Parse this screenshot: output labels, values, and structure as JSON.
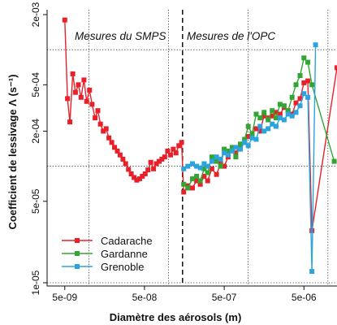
{
  "chart_data": {
    "type": "line",
    "xlabel": "Diamètre des aérosols (m)",
    "ylabel": "Coefficient de lessivage Λ (s⁻¹)",
    "x_scale": "log",
    "y_scale": "log",
    "xlim": [
      3e-09,
      1.3e-05
    ],
    "ylim": [
      1e-05,
      0.002
    ],
    "x_ticks": [
      5e-09,
      5e-08,
      5e-07,
      5e-06
    ],
    "x_tick_labels": [
      "5e-09",
      "5e-08",
      "5e-07",
      "5e-06"
    ],
    "y_ticks": [
      1e-05,
      5e-05,
      0.0002,
      0.0005,
      0.002
    ],
    "y_tick_labels": [
      "1e-05",
      "5e-05",
      "2e-04",
      "5e-04",
      "2e-03"
    ],
    "grid": "dotted",
    "vertical_lines": [
      1e-08,
      1e-07,
      1e-06,
      1e-05
    ],
    "horizontal_lines": [
      1e-05,
      0.0001,
      0.001
    ],
    "separator_x": 1.5e-07,
    "annotations": [
      "Mesures du SMPS",
      "Mesures de l'OPC"
    ],
    "legend_position": "bottom-left",
    "series": [
      {
        "name": "Cadarache",
        "color": "#e8202a",
        "x": [
          5e-09,
          5.4e-09,
          5.8e-09,
          6.3e-09,
          6.8e-09,
          7.4e-09,
          8e-09,
          8.7e-09,
          9.4e-09,
          1.02e-08,
          1.1e-08,
          1.2e-08,
          1.3e-08,
          1.4e-08,
          1.52e-08,
          1.65e-08,
          1.79e-08,
          1.94e-08,
          2.1e-08,
          2.28e-08,
          2.47e-08,
          2.68e-08,
          2.9e-08,
          3.15e-08,
          3.41e-08,
          3.7e-08,
          4e-08,
          4.34e-08,
          4.7e-08,
          5.1e-08,
          5.53e-08,
          6e-08,
          6.5e-08,
          7.05e-08,
          7.64e-08,
          8.28e-08,
          8.98e-08,
          9.74e-08,
          1.06e-07,
          1.15e-07,
          1.24e-07,
          1.35e-07,
          1.46e-07,
          1.55e-07,
          1.75e-07,
          2e-07,
          2.25e-07,
          2.5e-07,
          2.8e-07,
          3.1e-07,
          3.5e-07,
          4e-07,
          4.5e-07,
          5e-07,
          5.6e-07,
          6.3e-07,
          7e-07,
          8e-07,
          9e-07,
          1e-06,
          1.12e-06,
          1.26e-06,
          1.41e-06,
          1.58e-06,
          1.78e-06,
          2e-06,
          2.24e-06,
          2.51e-06,
          2.82e-06,
          3.16e-06,
          3.55e-06,
          3.98e-06,
          4.47e-06,
          5e-06,
          5.6e-06,
          6.3e-06,
          1.3e-05
        ],
        "y": [
          0.0018,
          0.00038,
          0.00024,
          0.00062,
          0.00043,
          0.0005,
          0.00039,
          0.00055,
          0.00036,
          0.00045,
          0.00034,
          0.00026,
          0.0003,
          0.00023,
          0.0002,
          0.00021,
          0.000175,
          0.00016,
          0.000145,
          0.000135,
          0.000125,
          0.000115,
          0.000105,
          9.4e-05,
          8.6e-05,
          8e-05,
          7.6e-05,
          7.8e-05,
          8.2e-05,
          8.6e-05,
          9.3e-05,
          0.000108,
          9.5e-05,
          0.000105,
          0.00011,
          0.000115,
          0.00012,
          0.000135,
          0.000125,
          0.00014,
          0.00013,
          0.00015,
          0.00016,
          6e-05,
          6.8e-05,
          6.5e-05,
          7.5e-05,
          7e-05,
          8.2e-05,
          7.5e-05,
          9.5e-05,
          8.5e-05,
          0.000105,
          0.0001,
          0.00012,
          0.00014,
          0.00013,
          0.00015,
          0.00016,
          0.00018,
          0.00019,
          0.00021,
          0.0002,
          0.00027,
          0.00026,
          0.00027,
          0.00029,
          0.00028,
          0.00032,
          0.0003,
          0.00028,
          0.00035,
          0.00038,
          0.00052,
          0.00054,
          2.8e-05,
          0.0007
        ]
      },
      {
        "name": "Gardanne",
        "color": "#33a532",
        "x": [
          1.55e-07,
          1.75e-07,
          2e-07,
          2.25e-07,
          2.5e-07,
          2.8e-07,
          3.1e-07,
          3.5e-07,
          4e-07,
          4.5e-07,
          5e-07,
          5.6e-07,
          6.3e-07,
          7e-07,
          8e-07,
          9e-07,
          1e-06,
          1.12e-06,
          1.26e-06,
          1.41e-06,
          1.58e-06,
          1.78e-06,
          2e-06,
          2.24e-06,
          2.51e-06,
          2.82e-06,
          3.16e-06,
          3.55e-06,
          3.98e-06,
          4.47e-06,
          5e-06,
          5.6e-06,
          6.3e-06,
          1.2e-05
        ],
        "y": [
          7e-05,
          6.5e-05,
          7.8e-05,
          8.2e-05,
          7.5e-05,
          9.5e-05,
          8.8e-05,
          0.00012,
          0.00011,
          0.0001,
          0.00014,
          0.000135,
          0.000145,
          0.00012,
          0.000155,
          0.00017,
          0.00022,
          0.00019,
          0.00028,
          0.00026,
          0.00029,
          0.00025,
          0.0003,
          0.00026,
          0.00034,
          0.00033,
          0.0003,
          0.00039,
          0.0005,
          0.0006,
          0.00085,
          0.00078,
          0.0005,
          0.00011
        ]
      },
      {
        "name": "Grenoble",
        "color": "#2ba4dd",
        "x": [
          1.55e-07,
          1.75e-07,
          2e-07,
          2.25e-07,
          2.5e-07,
          2.8e-07,
          3.1e-07,
          3.5e-07,
          4e-07,
          4.5e-07,
          5e-07,
          5.6e-07,
          6.3e-07,
          7e-07,
          8e-07,
          9e-07,
          1e-06,
          1.12e-06,
          1.26e-06,
          1.41e-06,
          1.58e-06,
          1.78e-06,
          2e-06,
          2.24e-06,
          2.51e-06,
          2.82e-06,
          3.16e-06,
          3.55e-06,
          3.98e-06,
          4.47e-06,
          5e-06,
          5.6e-06,
          6.3e-06,
          7e-06
        ],
        "y": [
          9.5e-05,
          0.0001,
          0.000105,
          0.0001,
          9.7e-05,
          0.000105,
          0.0001,
          0.00011,
          0.00012,
          0.000115,
          0.00013,
          0.000125,
          0.000135,
          0.000145,
          0.00014,
          0.00016,
          0.00015,
          0.000175,
          0.00017,
          0.00022,
          0.0002,
          0.00021,
          0.00023,
          0.00022,
          0.00026,
          0.00025,
          0.00028,
          0.00027,
          0.00029,
          0.00033,
          0.00042,
          0.00039,
          1.25e-05,
          0.0011
        ]
      }
    ]
  }
}
